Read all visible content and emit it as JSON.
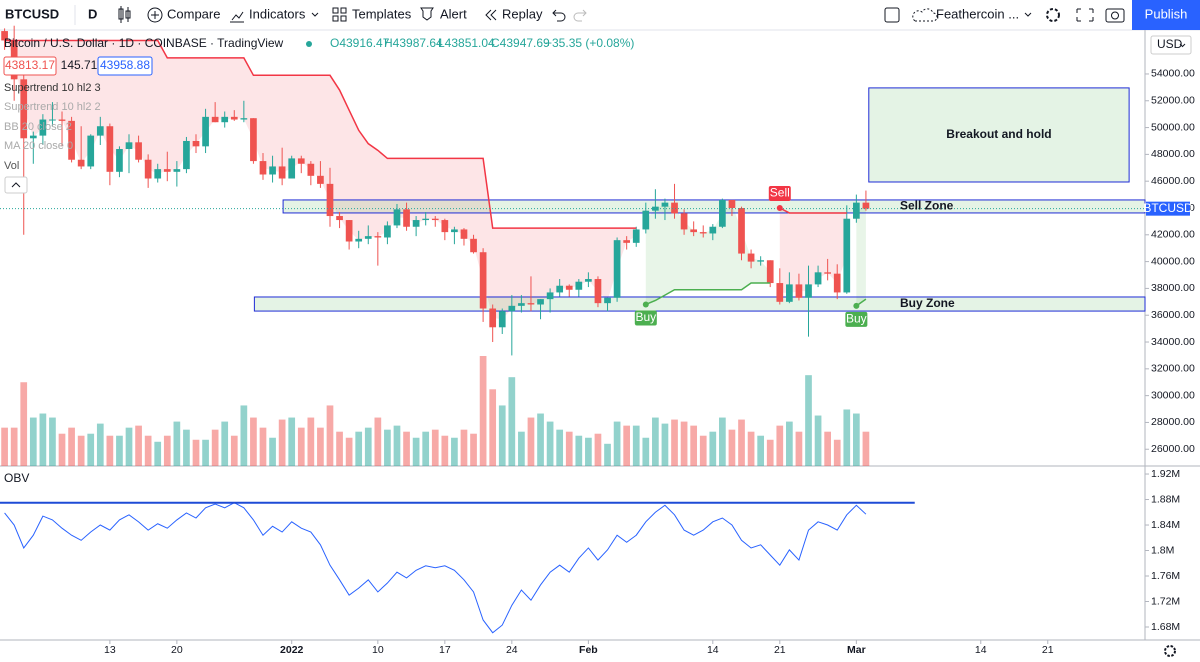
{
  "toolbar": {
    "symbol": "BTCUSD",
    "interval": "D",
    "compare": "Compare",
    "indicators": "Indicators",
    "templates": "Templates",
    "alert": "Alert",
    "replay": "Replay",
    "layout": "Feathercoin ...",
    "publish": "Publish"
  },
  "chart_data": {
    "type": "candlestick",
    "title": "Bitcoin / U.S. Dollar · 1D · COINBASE · TradingView",
    "ohlc_legend": [
      "O43916.47",
      "H43987.64",
      "L43851.04",
      "C43947.69",
      "+35.35 (+0.08%)"
    ],
    "price_boxes": [
      43813.17,
      145.71,
      43958.88
    ],
    "indicators": [
      "Supertrend 10 hl2 3",
      "Supertrend 10 hl2 2",
      "BB 20 close 2",
      "MA 20 close 0",
      "Vol"
    ],
    "currency": "USD",
    "symbol_tag": "BTCUSD",
    "up_color": "#26a69a",
    "down_color": "#ef5350",
    "grid": false,
    "xlim": [
      -0.48,
      119.16
    ],
    "xticks": [
      {
        "value": 11,
        "label": "13"
      },
      {
        "value": 18,
        "label": "20"
      },
      {
        "value": 30,
        "label": "2022"
      },
      {
        "value": 39,
        "label": "10"
      },
      {
        "value": 46,
        "label": "17"
      },
      {
        "value": 53,
        "label": "24"
      },
      {
        "value": 61,
        "label": "Feb"
      },
      {
        "value": 74,
        "label": "14"
      },
      {
        "value": 81,
        "label": "21"
      },
      {
        "value": 89,
        "label": "Mar"
      },
      {
        "value": 102,
        "label": "14"
      },
      {
        "value": 109,
        "label": "21"
      }
    ],
    "ylim": [
      24750,
      57280
    ],
    "yticks": [
      {
        "value": 26000,
        "label": "26000.00"
      },
      {
        "value": 28000,
        "label": "28000.00"
      },
      {
        "value": 30000,
        "label": "30000.00"
      },
      {
        "value": 32000,
        "label": "32000.00"
      },
      {
        "value": 34000,
        "label": "34000.00"
      },
      {
        "value": 36000,
        "label": "36000.00"
      },
      {
        "value": 38000,
        "label": "38000.00"
      },
      {
        "value": 40000,
        "label": "40000.00"
      },
      {
        "value": 42000,
        "label": "42000.00"
      },
      {
        "value": 44000,
        "label": "44000.00"
      },
      {
        "value": 46000,
        "label": "46000.00"
      },
      {
        "value": 48000,
        "label": "48000.00"
      },
      {
        "value": 50000,
        "label": "50000.00"
      },
      {
        "value": 52000,
        "label": "52000.00"
      },
      {
        "value": 54000,
        "label": "54000.00"
      }
    ],
    "candles": [
      [
        57200,
        57400,
        55800,
        56500
      ],
      [
        56500,
        57600,
        52000,
        53600
      ],
      [
        53600,
        53900,
        42000,
        49200
      ],
      [
        49200,
        49700,
        47300,
        49400
      ],
      [
        49400,
        51000,
        48700,
        50600
      ],
      [
        50600,
        51900,
        50100,
        50600
      ],
      [
        50600,
        51200,
        48600,
        50500
      ],
      [
        50500,
        50800,
        47400,
        47600
      ],
      [
        47600,
        50100,
        46900,
        47100
      ],
      [
        47100,
        49500,
        46900,
        49400
      ],
      [
        49400,
        50800,
        48700,
        50100
      ],
      [
        50100,
        50300,
        45700,
        46700
      ],
      [
        46700,
        48600,
        46300,
        48400
      ],
      [
        48400,
        49500,
        46600,
        48900
      ],
      [
        48900,
        49400,
        47400,
        47600
      ],
      [
        47600,
        48000,
        45500,
        46200
      ],
      [
        46200,
        47300,
        45900,
        46900
      ],
      [
        46900,
        48200,
        46000,
        46700
      ],
      [
        46700,
        47500,
        45600,
        46900
      ],
      [
        46900,
        49300,
        46600,
        49000
      ],
      [
        49000,
        49500,
        48100,
        48600
      ],
      [
        48600,
        51400,
        48100,
        50800
      ],
      [
        50800,
        51900,
        50400,
        50400
      ],
      [
        50400,
        51200,
        50000,
        50800
      ],
      [
        50800,
        51300,
        50500,
        50600
      ],
      [
        50600,
        52000,
        50400,
        50700
      ],
      [
        50700,
        50700,
        47300,
        47500
      ],
      [
        47500,
        48100,
        46100,
        46500
      ],
      [
        46500,
        47900,
        45900,
        47100
      ],
      [
        47100,
        48500,
        45700,
        46200
      ],
      [
        46200,
        47900,
        46200,
        47700
      ],
      [
        47700,
        47900,
        46600,
        47300
      ],
      [
        47300,
        47500,
        45700,
        46400
      ],
      [
        46400,
        47500,
        45500,
        45800
      ],
      [
        45800,
        47000,
        42600,
        43400
      ],
      [
        43400,
        43700,
        42500,
        43100
      ],
      [
        43100,
        43100,
        40900,
        41500
      ],
      [
        41500,
        42300,
        41000,
        41700
      ],
      [
        41700,
        42700,
        41300,
        41900
      ],
      [
        41900,
        42200,
        39700,
        41800
      ],
      [
        41800,
        43000,
        41300,
        42700
      ],
      [
        42700,
        44300,
        42500,
        43900
      ],
      [
        43900,
        44400,
        42300,
        42600
      ],
      [
        42600,
        43400,
        41900,
        43100
      ],
      [
        43100,
        43700,
        42700,
        43200
      ],
      [
        43200,
        43400,
        42600,
        43100
      ],
      [
        43100,
        43200,
        41600,
        42200
      ],
      [
        42200,
        42600,
        41300,
        42400
      ],
      [
        42400,
        42500,
        41200,
        41700
      ],
      [
        41700,
        42000,
        40600,
        40700
      ],
      [
        40700,
        41000,
        35500,
        36500
      ],
      [
        36500,
        36800,
        34000,
        35100
      ],
      [
        35100,
        36500,
        34600,
        36300
      ],
      [
        36300,
        37500,
        33000,
        36700
      ],
      [
        36700,
        37500,
        36200,
        36900
      ],
      [
        36900,
        38900,
        36300,
        36800
      ],
      [
        36800,
        37200,
        35700,
        37200
      ],
      [
        37200,
        38000,
        36200,
        37700
      ],
      [
        37700,
        38700,
        37400,
        38200
      ],
      [
        38200,
        38300,
        37400,
        37900
      ],
      [
        37900,
        38700,
        37400,
        38500
      ],
      [
        38500,
        39200,
        38100,
        38700
      ],
      [
        38700,
        38900,
        36600,
        36900
      ],
      [
        36900,
        37300,
        36300,
        37300
      ],
      [
        37300,
        41800,
        37000,
        41600
      ],
      [
        41600,
        41900,
        40900,
        41400
      ],
      [
        41400,
        42600,
        41100,
        42400
      ],
      [
        42400,
        44400,
        42100,
        43800
      ],
      [
        43800,
        45400,
        43200,
        44100
      ],
      [
        44100,
        44700,
        43100,
        44400
      ],
      [
        44400,
        45800,
        43200,
        43600
      ],
      [
        43600,
        43900,
        42000,
        42400
      ],
      [
        42400,
        43000,
        41900,
        42200
      ],
      [
        42200,
        42700,
        41800,
        42100
      ],
      [
        42100,
        42800,
        41600,
        42600
      ],
      [
        42600,
        44700,
        42500,
        44600
      ],
      [
        44600,
        44600,
        43400,
        44000
      ],
      [
        44000,
        44100,
        40100,
        40600
      ],
      [
        40600,
        40900,
        39500,
        40000
      ],
      [
        40000,
        40400,
        39700,
        40100
      ],
      [
        40100,
        40100,
        38100,
        38400
      ],
      [
        38400,
        39500,
        36800,
        37000
      ],
      [
        37000,
        39200,
        36900,
        38300
      ],
      [
        38300,
        39100,
        37100,
        37300
      ],
      [
        37300,
        39700,
        34400,
        38300
      ],
      [
        38300,
        39700,
        38100,
        39200
      ],
      [
        39200,
        40200,
        38600,
        39100
      ],
      [
        39100,
        39800,
        37200,
        37700
      ],
      [
        37700,
        44200,
        37600,
        43200
      ],
      [
        43200,
        45000,
        42900,
        44400
      ],
      [
        44400,
        45300,
        43800,
        43950
      ]
    ],
    "volume": {
      "values": [
        38,
        38,
        83,
        48,
        52,
        48,
        32,
        38,
        30,
        32,
        42,
        30,
        30,
        38,
        40,
        30,
        24,
        30,
        44,
        36,
        26,
        26,
        36,
        44,
        30,
        60,
        48,
        38,
        28,
        46,
        48,
        38,
        48,
        38,
        60,
        34,
        28,
        34,
        38,
        48,
        36,
        40,
        34,
        28,
        34,
        36,
        30,
        28,
        36,
        32,
        109,
        76,
        60,
        88,
        34,
        48,
        52,
        44,
        36,
        34,
        30,
        28,
        32,
        22,
        44,
        40,
        40,
        28,
        48,
        42,
        46,
        44,
        40,
        30,
        34,
        48,
        36,
        46,
        34,
        30,
        26,
        40,
        44,
        34,
        90,
        50,
        34,
        26,
        56,
        52,
        34
      ]
    },
    "supertrend": [
      {
        "color": "#f23645",
        "fill": "rgba(242,54,69,0.13)",
        "values": [
          56500,
          56500,
          56500,
          56500,
          56500,
          56500,
          56500,
          56500,
          56500,
          56500,
          56500,
          56500,
          56500,
          56500,
          56500,
          56500,
          56500,
          55200,
          55200,
          55200,
          55200,
          55200,
          55200,
          55200,
          55200,
          55200,
          53900,
          53900,
          53900,
          53900,
          53900,
          53900,
          53900,
          53900,
          53900,
          52800,
          51300,
          49800,
          48800,
          48300,
          47700,
          47700,
          47700,
          47700,
          47700,
          47700,
          47700,
          47700,
          47700,
          47700,
          47700,
          42500,
          42500,
          42500,
          42500,
          42500,
          42500,
          42500,
          42500,
          42500,
          42500,
          42500,
          42500,
          42500,
          42500,
          42500,
          42500,
          null,
          null,
          null,
          null,
          null,
          null,
          null,
          null,
          null,
          null,
          null,
          null,
          null,
          null,
          44000,
          43630,
          43630,
          43630,
          43630,
          43630,
          43630,
          43630,
          null,
          null
        ]
      },
      {
        "color": "#4caf50",
        "fill": "rgba(76,175,80,0.13)",
        "values": [
          null,
          null,
          null,
          null,
          null,
          null,
          null,
          null,
          null,
          null,
          null,
          null,
          null,
          null,
          null,
          null,
          null,
          null,
          null,
          null,
          null,
          null,
          null,
          null,
          null,
          null,
          null,
          null,
          null,
          null,
          null,
          null,
          null,
          null,
          null,
          null,
          null,
          null,
          null,
          null,
          null,
          null,
          null,
          null,
          null,
          null,
          null,
          null,
          null,
          null,
          null,
          null,
          null,
          null,
          null,
          null,
          null,
          null,
          null,
          null,
          null,
          null,
          null,
          null,
          null,
          null,
          null,
          36800,
          37100,
          37500,
          37900,
          37900,
          37900,
          37900,
          37900,
          37900,
          37900,
          37900,
          38400,
          38400,
          38400,
          null,
          null,
          null,
          null,
          null,
          null,
          null,
          null,
          36700,
          37200
        ]
      }
    ],
    "signals": [
      {
        "label": "Buy",
        "x": 67,
        "color": "#4caf50"
      },
      {
        "label": "Sell",
        "x": 81,
        "color": "#f23645"
      },
      {
        "label": "Buy",
        "x": 89,
        "color": "#4caf50"
      }
    ],
    "zones": [
      {
        "label": "Breakout and hold",
        "x0": 90.3,
        "x1": 117.5,
        "y0": 45940,
        "y1": 52960
      },
      {
        "label": "Sell Zone",
        "x0": 29.1,
        "x1": 119.16,
        "y0": 43630,
        "y1": 44600
      },
      {
        "label": "Buy Zone",
        "x0": 26.1,
        "x1": 119.16,
        "y0": 36310,
        "y1": 37360
      }
    ],
    "obv": {
      "name": "OBV",
      "color": "#2962ff",
      "values": [
        1859000,
        1840000,
        1804000,
        1824000,
        1854000,
        1848000,
        1835000,
        1824000,
        1816000,
        1829000,
        1840000,
        1832000,
        1848000,
        1856000,
        1845000,
        1832000,
        1842000,
        1835000,
        1848000,
        1859000,
        1851000,
        1867000,
        1873000,
        1867000,
        1875000,
        1867000,
        1848000,
        1824000,
        1838000,
        1829000,
        1845000,
        1835000,
        1829000,
        1809000,
        1777000,
        1754000,
        1730000,
        1741000,
        1754000,
        1735000,
        1749000,
        1766000,
        1757000,
        1769000,
        1776000,
        1773000,
        1776000,
        1769000,
        1754000,
        1735000,
        1691000,
        1671000,
        1683000,
        1714000,
        1738000,
        1722000,
        1746000,
        1766000,
        1777000,
        1766000,
        1788000,
        1804000,
        1785000,
        1801000,
        1824000,
        1813000,
        1824000,
        1845000,
        1860000,
        1871000,
        1856000,
        1832000,
        1824000,
        1832000,
        1845000,
        1851000,
        1840000,
        1816000,
        1804000,
        1809000,
        1793000,
        1777000,
        1801000,
        1785000,
        1832000,
        1845000,
        1840000,
        1832000,
        1856000,
        1871000,
        1857000
      ],
      "ylim": [
        1659600,
        1932600
      ],
      "yticks": [
        {
          "value": 1680000,
          "label": "1.68M"
        },
        {
          "value": 1720000,
          "label": "1.72M"
        },
        {
          "value": 1760000,
          "label": "1.76M"
        },
        {
          "value": 1800000,
          "label": "1.8M"
        },
        {
          "value": 1840000,
          "label": "1.84M"
        },
        {
          "value": 1880000,
          "label": "1.88M"
        },
        {
          "value": 1920000,
          "label": "1.92M"
        }
      ],
      "hline": {
        "value": 1875000,
        "x0": -0.48,
        "x1": 95.1
      }
    }
  }
}
